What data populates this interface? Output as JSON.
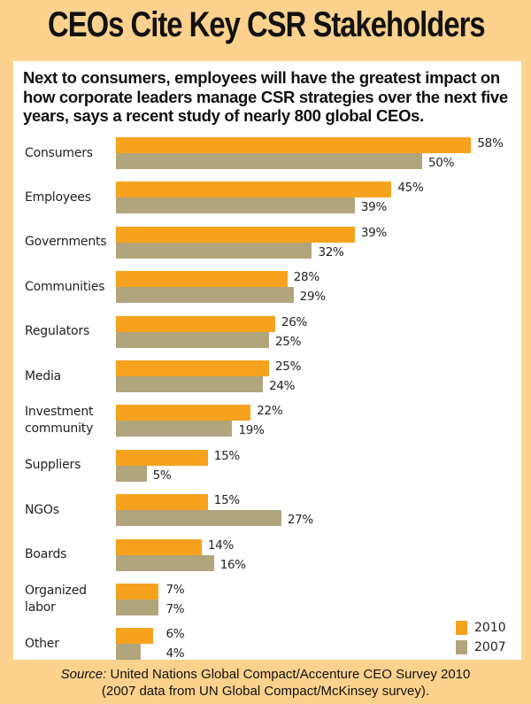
{
  "title": "CEOs Cite Key CSR Stakeholders",
  "subtitle": "Next to consumers, employees will have the greatest impact on how corporate leaders manage CSR strategies over the next five years, says a recent study of nearly 800 global CEOs.",
  "source": {
    "prefix": "Source:",
    "line1": " United Nations Global Compact/Accenture CEO Survey 2010",
    "line2": "(2007 data from UN Global Compact/McKinsey survey)."
  },
  "colors": {
    "series_2010": "#F7A21E",
    "series_2007": "#B0A57D",
    "background": "#FCD28E"
  },
  "chart_data": {
    "type": "bar",
    "orientation": "horizontal",
    "title": "CEOs Cite Key CSR Stakeholders",
    "xlabel": "",
    "ylabel": "",
    "xlim": [
      0,
      60
    ],
    "unit": "%",
    "grid": false,
    "legend_position": "bottom-right",
    "categories": [
      [
        "Consumers"
      ],
      [
        "Employees"
      ],
      [
        "Governments"
      ],
      [
        "Communities"
      ],
      [
        "Regulators"
      ],
      [
        "Media"
      ],
      [
        "Investment",
        "community"
      ],
      [
        "Suppliers"
      ],
      [
        "NGOs"
      ],
      [
        "Boards"
      ],
      [
        "Organized",
        "labor"
      ],
      [
        "Other"
      ]
    ],
    "series": [
      {
        "name": "2010",
        "values": [
          58,
          45,
          39,
          28,
          26,
          25,
          22,
          15,
          15,
          14,
          7,
          6
        ]
      },
      {
        "name": "2007",
        "values": [
          50,
          39,
          32,
          29,
          25,
          24,
          19,
          5,
          27,
          16,
          7,
          4
        ]
      }
    ]
  }
}
